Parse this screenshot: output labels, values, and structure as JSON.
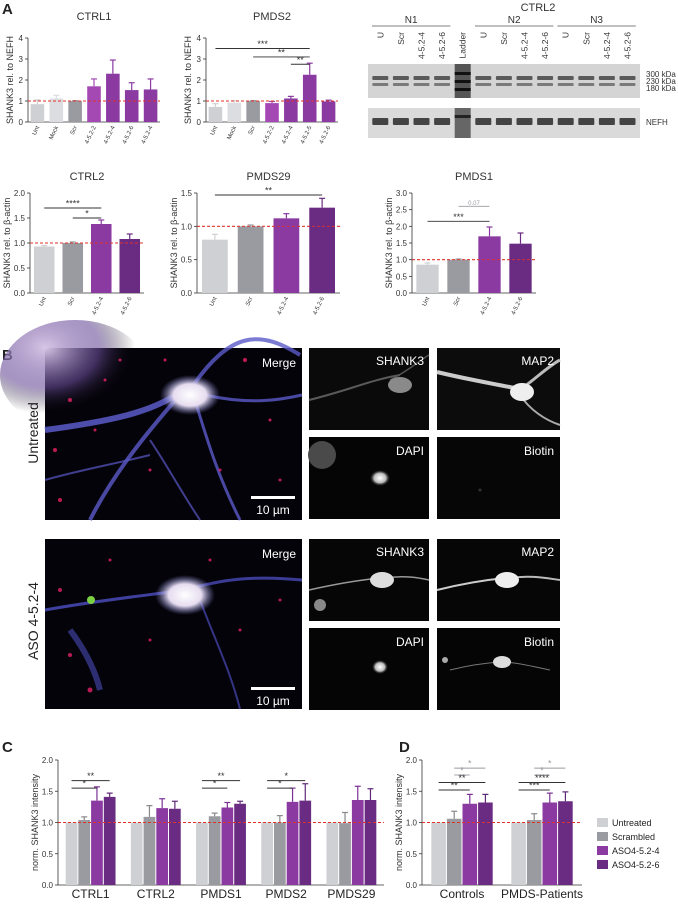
{
  "colors": {
    "untreated": "#cfd0d3",
    "mock": "#dcdde0",
    "scrambled": "#9a9ba0",
    "aso524_light": "#a449b4",
    "aso524": "#8a3aa0",
    "aso526": "#6a2c82",
    "aso526_dark": "#4a1a5e",
    "ref_line": "#e0312a",
    "sig": "#333333",
    "sig_grey": "#9a9ba0"
  },
  "panel_labels": {
    "a": "A",
    "b": "B",
    "c": "C",
    "d": "D"
  },
  "chart_data": [
    {
      "id": "ctrl1",
      "type": "bar",
      "title": "CTRL1",
      "ylabel": "SHANK3 rel. to NEFH",
      "ylim": [
        0,
        4
      ],
      "yticks": [
        "0",
        "1",
        "2",
        "3",
        "4"
      ],
      "categories": [
        "Unt",
        "Mock",
        "Scr",
        "4-5.2-2",
        "4-5.2-4",
        "4-5.2-6",
        "4-5.2-4"
      ],
      "values": [
        0.85,
        1.12,
        1.0,
        1.7,
        2.3,
        1.52,
        1.55
      ],
      "errors": [
        0.2,
        0.15,
        0.02,
        0.35,
        0.65,
        0.35,
        0.5
      ],
      "colors": [
        "#cfd0d3",
        "#dcdde0",
        "#9a9ba0",
        "#a449b4",
        "#8a3aa0",
        "#8a3aa0",
        "#8a3aa0"
      ],
      "reference": 1,
      "significance": []
    },
    {
      "id": "pmds2",
      "type": "bar",
      "title": "PMDS2",
      "ylabel": "SHANK3 rel. to NEFH",
      "ylim": [
        0,
        4
      ],
      "yticks": [
        "0",
        "1",
        "2",
        "3",
        "4"
      ],
      "categories": [
        "Unt",
        "Mock",
        "Scr",
        "4-5.2-2",
        "4-5.2-4",
        "4-5.2-5",
        "4-5.2-6"
      ],
      "values": [
        0.72,
        0.92,
        1.0,
        0.9,
        1.12,
        2.25,
        0.98
      ],
      "errors": [
        0.15,
        0.1,
        0.02,
        0.08,
        0.1,
        0.55,
        0.06
      ],
      "colors": [
        "#cfd0d3",
        "#dcdde0",
        "#9a9ba0",
        "#a449b4",
        "#8a3aa0",
        "#8a3aa0",
        "#8a3aa0"
      ],
      "reference": 1,
      "significance": [
        {
          "from": 0,
          "to": 5,
          "label": "***",
          "y": 3.5
        },
        {
          "from": 2,
          "to": 5,
          "label": "**",
          "y": 3.1
        },
        {
          "from": 4,
          "to": 5,
          "label": "**",
          "y": 2.75
        }
      ]
    },
    {
      "id": "ctrl2_bar",
      "type": "bar",
      "title": "CTRL2",
      "ylabel": "SHANK3 rel. to β-actin",
      "ylim": [
        0,
        2.0
      ],
      "yticks": [
        "0.0",
        "0.5",
        "1.0",
        "1.5",
        "2.0"
      ],
      "categories": [
        "Unt",
        "Scr",
        "4-5.2-4",
        "4-5.2-6"
      ],
      "values": [
        0.93,
        1.0,
        1.38,
        1.08
      ],
      "errors": [
        0.02,
        0.02,
        0.08,
        0.1
      ],
      "colors": [
        "#cfd0d3",
        "#9a9ba0",
        "#8a3aa0",
        "#6a2c82"
      ],
      "reference": 1,
      "significance": [
        {
          "from": 0,
          "to": 2,
          "label": "****",
          "y": 1.7
        },
        {
          "from": 1,
          "to": 2,
          "label": "*",
          "y": 1.5
        }
      ]
    },
    {
      "id": "pmds29",
      "type": "bar",
      "title": "PMDS29",
      "ylabel": "SHANK3 rel. to β-actin",
      "ylim": [
        0,
        1.5
      ],
      "yticks": [
        "0.0",
        "0.5",
        "1.0",
        "1.5"
      ],
      "categories": [
        "Unt",
        "Scr",
        "4-5.2-4",
        "4-5.2-6"
      ],
      "values": [
        0.8,
        1.0,
        1.12,
        1.28
      ],
      "errors": [
        0.08,
        0.02,
        0.07,
        0.14
      ],
      "colors": [
        "#cfd0d3",
        "#9a9ba0",
        "#8a3aa0",
        "#6a2c82"
      ],
      "reference": 1,
      "significance": [
        {
          "from": 0,
          "to": 3,
          "label": "**",
          "y": 1.47
        }
      ]
    },
    {
      "id": "pmds1",
      "type": "bar",
      "title": "PMDS1",
      "ylabel": "SHANK3 rel. to β-actin",
      "ylim": [
        0,
        3.0
      ],
      "yticks": [
        "0.0",
        "0.5",
        "1.0",
        "1.5",
        "2.0",
        "2.5",
        "3.0"
      ],
      "categories": [
        "Unt",
        "Scr",
        "4-5.2-4",
        "4-5.2-6"
      ],
      "values": [
        0.85,
        1.0,
        1.7,
        1.48
      ],
      "errors": [
        0.05,
        0.02,
        0.28,
        0.32
      ],
      "colors": [
        "#cfd0d3",
        "#9a9ba0",
        "#8a3aa0",
        "#6a2c82"
      ],
      "reference": 1,
      "significance": [
        {
          "from": 0,
          "to": 2,
          "label": "***",
          "y": 2.15
        },
        {
          "from": 1,
          "to": 2,
          "label": "0.07",
          "y": 2.6,
          "grey": true
        }
      ]
    },
    {
      "id": "groups_c",
      "type": "bar",
      "title": "",
      "ylabel": "norm. SHANK3 intensity",
      "ylim": [
        0,
        2.0
      ],
      "yticks": [
        "0.0",
        "0.5",
        "1.0",
        "1.5",
        "2.0"
      ],
      "categories": [
        "CTRL1",
        "CTRL2",
        "PMDS1",
        "PMDS2",
        "PMDS29"
      ],
      "series": [
        {
          "name": "Untreated",
          "values": [
            1.0,
            1.0,
            1.0,
            1.0,
            1.0
          ],
          "errors": [
            0.0,
            0.0,
            0.0,
            0.0,
            0.0
          ]
        },
        {
          "name": "Scrambled",
          "values": [
            1.04,
            1.09,
            1.1,
            1.0,
            0.99
          ],
          "errors": [
            0.05,
            0.18,
            0.05,
            0.11,
            0.17
          ]
        },
        {
          "name": "ASO4-5.2-4",
          "values": [
            1.35,
            1.23,
            1.24,
            1.33,
            1.36
          ],
          "errors": [
            0.22,
            0.15,
            0.08,
            0.22,
            0.22
          ]
        },
        {
          "name": "ASO4-5.2-6",
          "values": [
            1.41,
            1.22,
            1.3,
            1.35,
            1.36
          ],
          "errors": [
            0.06,
            0.12,
            0.04,
            0.27,
            0.18
          ]
        }
      ],
      "reference": 1,
      "significance": [
        {
          "group": 0,
          "from": 0,
          "to": 3,
          "label": "**",
          "y": 1.67
        },
        {
          "group": 0,
          "from": 0,
          "to": 2,
          "label": "*",
          "y": 1.55
        },
        {
          "group": 2,
          "from": 0,
          "to": 3,
          "label": "**",
          "y": 1.67
        },
        {
          "group": 2,
          "from": 0,
          "to": 2,
          "label": "*",
          "y": 1.55
        },
        {
          "group": 3,
          "from": 0,
          "to": 3,
          "label": "*",
          "y": 1.67
        },
        {
          "group": 3,
          "from": 0,
          "to": 2,
          "label": "*",
          "y": 1.55
        }
      ]
    },
    {
      "id": "groups_d",
      "type": "bar",
      "title": "",
      "ylabel": "norm. SHANK3 intensity",
      "ylim": [
        0,
        2.0
      ],
      "yticks": [
        "0.0",
        "0.5",
        "1.0",
        "1.5",
        "2.0"
      ],
      "categories": [
        "Controls",
        "PMDS-Patients"
      ],
      "series": [
        {
          "name": "Untreated",
          "values": [
            1.0,
            1.0
          ],
          "errors": [
            0.0,
            0.0
          ]
        },
        {
          "name": "Scrambled",
          "values": [
            1.06,
            1.04
          ],
          "errors": [
            0.12,
            0.1
          ]
        },
        {
          "name": "ASO4-5.2-4",
          "values": [
            1.3,
            1.32
          ],
          "errors": [
            0.15,
            0.15
          ]
        },
        {
          "name": "ASO4-5.2-6",
          "values": [
            1.32,
            1.34
          ],
          "errors": [
            0.13,
            0.15
          ]
        }
      ],
      "reference": 1,
      "legend_position": "right",
      "significance": [
        {
          "group": 0,
          "from": 1,
          "to": 3,
          "label": "*",
          "y": 1.87,
          "grey": true
        },
        {
          "group": 0,
          "from": 1,
          "to": 2,
          "label": "*",
          "y": 1.76,
          "grey": true
        },
        {
          "group": 0,
          "from": 0,
          "to": 3,
          "label": "**",
          "y": 1.64
        },
        {
          "group": 0,
          "from": 0,
          "to": 2,
          "label": "**",
          "y": 1.52
        },
        {
          "group": 1,
          "from": 1,
          "to": 3,
          "label": "*",
          "y": 1.87,
          "grey": true
        },
        {
          "group": 1,
          "from": 1,
          "to": 2,
          "label": "*",
          "y": 1.76,
          "grey": true
        },
        {
          "group": 1,
          "from": 0,
          "to": 3,
          "label": "****",
          "y": 1.64
        },
        {
          "group": 1,
          "from": 0,
          "to": 2,
          "label": "***",
          "y": 1.52
        }
      ]
    }
  ],
  "western_blot": {
    "title": "CTRL2",
    "groups": [
      "N1",
      "N2",
      "N3"
    ],
    "lanes": [
      "U",
      "Scr",
      "4-5.2-4",
      "4-5.2-6",
      "Ladder",
      "U",
      "Scr",
      "4-5.2-4",
      "4-5.2-6",
      "U",
      "Scr",
      "4-5.2-4",
      "4-5.2-6"
    ],
    "markers": [
      "300 kDa",
      "230 kDa",
      "180 kDa"
    ],
    "band_label": "NEFH"
  },
  "micrographs": {
    "untreated_row_label": "Untreated",
    "aso_row_label": "ASO 4-5.2-4",
    "merge_label": "Merge",
    "shank3_label": "SHANK3",
    "map2_label": "MAP2",
    "dapi_label": "DAPI",
    "biotin_label": "Biotin",
    "scale_bar_label": "10 µm"
  }
}
